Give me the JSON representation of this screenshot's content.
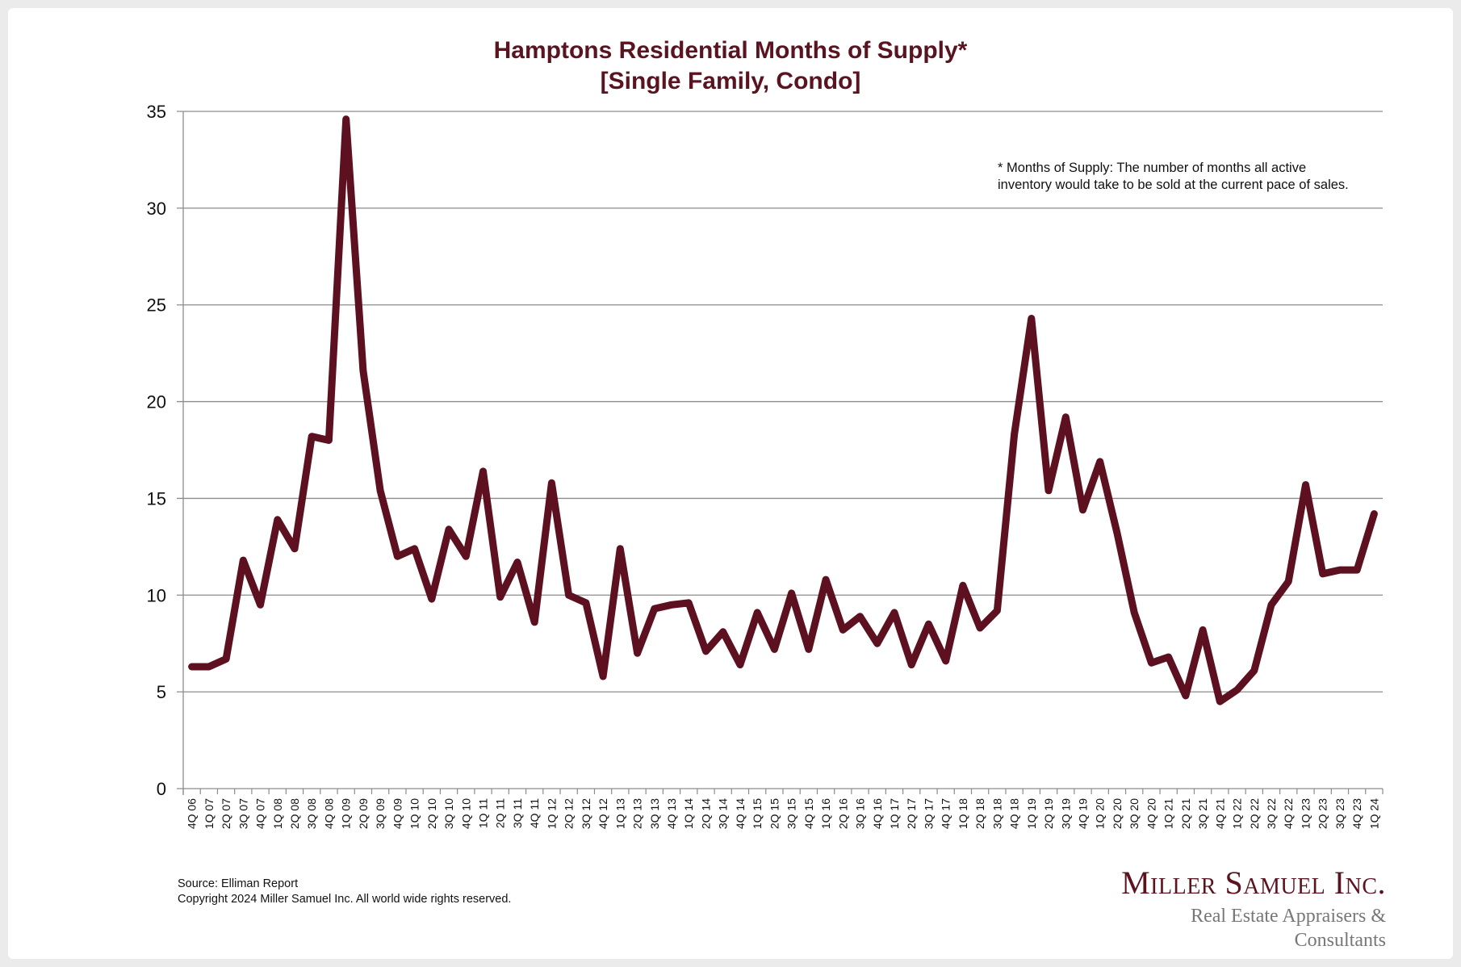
{
  "chart_data": {
    "type": "line",
    "title": "Hamptons Residential Months of Supply*",
    "subtitle": "[Single Family, Condo]",
    "xlabel": "",
    "ylabel": "",
    "ylim": [
      0,
      35
    ],
    "yticks": [
      "0",
      "5",
      "10",
      "15",
      "20",
      "25",
      "30",
      "35"
    ],
    "grid": true,
    "line_color": "#5c1020",
    "categories": [
      "4Q 06",
      "1Q 07",
      "2Q 07",
      "3Q 07",
      "4Q 07",
      "1Q 08",
      "2Q 08",
      "3Q 08",
      "4Q 08",
      "1Q 09",
      "2Q 09",
      "3Q 09",
      "4Q 09",
      "1Q 10",
      "2Q 10",
      "3Q 10",
      "4Q 10",
      "1Q 11",
      "2Q 11",
      "3Q 11",
      "4Q 11",
      "1Q 12",
      "2Q 12",
      "3Q 12",
      "4Q 12",
      "1Q 13",
      "2Q 13",
      "3Q 13",
      "4Q 13",
      "1Q 14",
      "2Q 14",
      "3Q 14",
      "4Q 14",
      "1Q 15",
      "2Q 15",
      "3Q 15",
      "4Q 15",
      "1Q 16",
      "2Q 16",
      "3Q 16",
      "4Q 16",
      "1Q 17",
      "2Q 17",
      "3Q 17",
      "4Q 17",
      "1Q 18",
      "2Q 18",
      "3Q 18",
      "4Q 18",
      "1Q 19",
      "2Q 19",
      "3Q 19",
      "4Q 19",
      "1Q 20",
      "2Q 20",
      "3Q 20",
      "4Q 20",
      "1Q 21",
      "2Q 21",
      "3Q 21",
      "4Q 21",
      "1Q 22",
      "2Q 22",
      "3Q 22",
      "4Q 22",
      "1Q 23",
      "2Q 23",
      "3Q 23",
      "4Q 23",
      "1Q 24"
    ],
    "series": [
      {
        "name": "Months of Supply",
        "values": [
          6.3,
          6.3,
          6.7,
          11.8,
          9.5,
          13.9,
          12.4,
          18.2,
          18.0,
          34.6,
          21.6,
          15.4,
          12.0,
          12.4,
          9.8,
          13.4,
          12.0,
          16.4,
          9.9,
          11.7,
          8.6,
          15.8,
          10.0,
          9.6,
          5.8,
          12.4,
          7.0,
          9.3,
          9.5,
          9.6,
          7.1,
          8.1,
          6.4,
          9.1,
          7.2,
          10.1,
          7.2,
          10.8,
          8.2,
          8.9,
          7.5,
          9.1,
          6.4,
          8.5,
          6.6,
          10.5,
          8.3,
          9.2,
          18.3,
          24.3,
          15.4,
          19.2,
          14.4,
          16.9,
          13.2,
          9.1,
          6.5,
          6.8,
          4.8,
          8.2,
          4.5,
          5.1,
          6.1,
          9.5,
          10.7,
          15.7,
          11.1,
          11.3,
          11.3,
          14.2
        ]
      }
    ],
    "annotations": [
      "* Months of Supply: The number of months all active",
      "inventory would take to be sold at the current pace of sales."
    ]
  },
  "footer": {
    "source": "Source: Elliman Report",
    "copyright": "Copyright 2024 Miller Samuel Inc.  All world wide rights reserved."
  },
  "logo": {
    "name": "Miller Samuel Inc.",
    "tagline": "Real Estate Appraisers & Consultants"
  }
}
